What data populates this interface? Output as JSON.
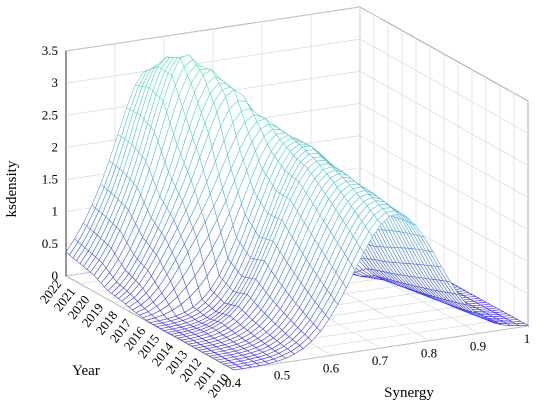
{
  "chart_data": {
    "type": "surface",
    "mesh_colormap": [
      "#3a2cf0",
      "#4fb6da",
      "#54e8b6"
    ],
    "xlabel": "Synergy",
    "ylabel": "Year",
    "zlabel": "ksdensity",
    "x_range": [
      0.4,
      1.0
    ],
    "x_ticks": [
      "0.4",
      "0.5",
      "0.6",
      "0.7",
      "0.8",
      "0.9",
      "1"
    ],
    "y_ticks": [
      "2010",
      "2011",
      "2012",
      "2013",
      "2014",
      "2015",
      "2016",
      "2017",
      "2018",
      "2019",
      "2020",
      "2021",
      "2022"
    ],
    "z_range": [
      0,
      3.5
    ],
    "z_ticks": [
      "0",
      "0.5",
      "1",
      "1.5",
      "2",
      "2.5",
      "3",
      "3.5"
    ],
    "grid": true,
    "series": [
      {
        "year": 2010,
        "peaks": [
          {
            "x": 0.73,
            "height": 2.05,
            "width": 0.085
          }
        ]
      },
      {
        "year": 2011,
        "peaks": [
          {
            "x": 0.72,
            "height": 2.15,
            "width": 0.085
          }
        ]
      },
      {
        "year": 2012,
        "peaks": [
          {
            "x": 0.71,
            "height": 2.25,
            "width": 0.085
          }
        ]
      },
      {
        "year": 2013,
        "peaks": [
          {
            "x": 0.7,
            "height": 2.35,
            "width": 0.085
          }
        ]
      },
      {
        "year": 2014,
        "peaks": [
          {
            "x": 0.69,
            "height": 2.45,
            "width": 0.085
          }
        ]
      },
      {
        "year": 2015,
        "peaks": [
          {
            "x": 0.69,
            "height": 2.55,
            "width": 0.08
          }
        ]
      },
      {
        "year": 2016,
        "peaks": [
          {
            "x": 0.68,
            "height": 2.6,
            "width": 0.08
          }
        ]
      },
      {
        "year": 2017,
        "peaks": [
          {
            "x": 0.66,
            "height": 2.75,
            "width": 0.075
          },
          {
            "x": 0.52,
            "height": 0.55,
            "width": 0.05
          }
        ]
      },
      {
        "year": 2018,
        "peaks": [
          {
            "x": 0.63,
            "height": 3.1,
            "width": 0.07
          },
          {
            "x": 0.5,
            "height": 0.6,
            "width": 0.05
          }
        ]
      },
      {
        "year": 2019,
        "peaks": [
          {
            "x": 0.61,
            "height": 3.3,
            "width": 0.065
          },
          {
            "x": 0.49,
            "height": 0.6,
            "width": 0.05
          }
        ]
      },
      {
        "year": 2020,
        "peaks": [
          {
            "x": 0.59,
            "height": 3.45,
            "width": 0.065
          },
          {
            "x": 0.47,
            "height": 0.55,
            "width": 0.05
          }
        ]
      },
      {
        "year": 2021,
        "peaks": [
          {
            "x": 0.58,
            "height": 3.3,
            "width": 0.065
          },
          {
            "x": 0.46,
            "height": 0.5,
            "width": 0.05
          }
        ]
      },
      {
        "year": 2022,
        "peaks": [
          {
            "x": 0.57,
            "height": 3.0,
            "width": 0.065
          },
          {
            "x": 0.45,
            "height": 0.45,
            "width": 0.05
          }
        ]
      }
    ]
  }
}
